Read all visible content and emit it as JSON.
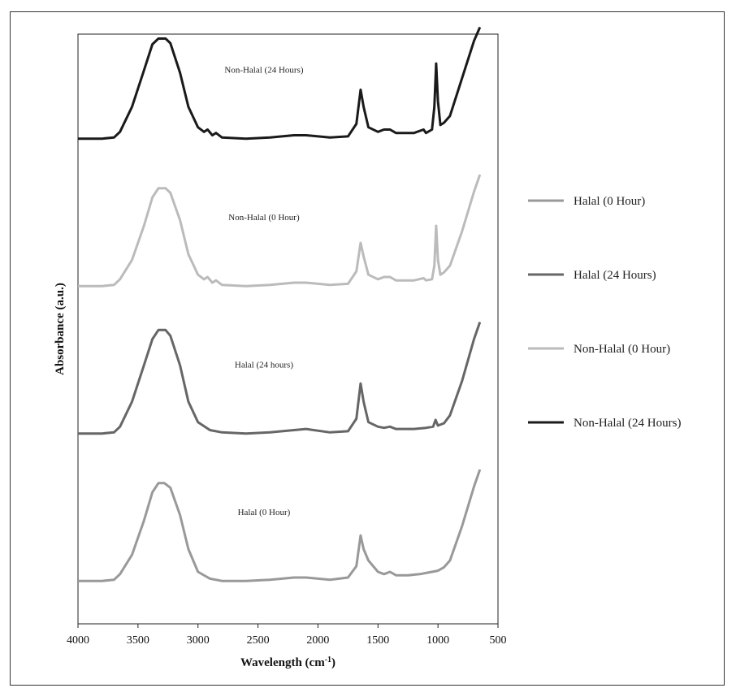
{
  "chart_data": {
    "type": "line",
    "xlabel": "Wavelength (cm",
    "xlabel_sup": "-1",
    "xlabel_close": ")",
    "ylabel": "Absorbance (a.u.)",
    "xlim": [
      4000,
      500
    ],
    "x_reversed": true,
    "x_ticks": [
      4000,
      3500,
      3000,
      2500,
      2000,
      1500,
      1000,
      500
    ],
    "y_tick_labels": false,
    "grid": false,
    "legend_position": "right",
    "series": [
      {
        "name": "Halal (0 Hour)",
        "annotation": "Halal (0 Hour)",
        "color": "#999999",
        "offset": 0,
        "points": [
          [
            4000,
            0.02
          ],
          [
            3800,
            0.02
          ],
          [
            3700,
            0.03
          ],
          [
            3650,
            0.08
          ],
          [
            3550,
            0.25
          ],
          [
            3450,
            0.55
          ],
          [
            3380,
            0.8
          ],
          [
            3330,
            0.88
          ],
          [
            3280,
            0.88
          ],
          [
            3230,
            0.84
          ],
          [
            3150,
            0.6
          ],
          [
            3080,
            0.3
          ],
          [
            3000,
            0.1
          ],
          [
            2900,
            0.04
          ],
          [
            2800,
            0.02
          ],
          [
            2600,
            0.02
          ],
          [
            2400,
            0.03
          ],
          [
            2200,
            0.05
          ],
          [
            2100,
            0.05
          ],
          [
            1900,
            0.03
          ],
          [
            1750,
            0.05
          ],
          [
            1680,
            0.15
          ],
          [
            1645,
            0.42
          ],
          [
            1620,
            0.3
          ],
          [
            1580,
            0.2
          ],
          [
            1500,
            0.1
          ],
          [
            1450,
            0.08
          ],
          [
            1400,
            0.1
          ],
          [
            1350,
            0.07
          ],
          [
            1300,
            0.07
          ],
          [
            1250,
            0.07
          ],
          [
            1150,
            0.08
          ],
          [
            1100,
            0.09
          ],
          [
            1050,
            0.1
          ],
          [
            1000,
            0.11
          ],
          [
            950,
            0.14
          ],
          [
            900,
            0.2
          ],
          [
            800,
            0.5
          ],
          [
            700,
            0.85
          ],
          [
            650,
            1.0
          ]
        ]
      },
      {
        "name": "Halal (24 Hours)",
        "annotation": "Halal (24 hours)",
        "color": "#666666",
        "offset": 1,
        "points": [
          [
            4000,
            0.02
          ],
          [
            3800,
            0.02
          ],
          [
            3700,
            0.03
          ],
          [
            3650,
            0.08
          ],
          [
            3550,
            0.3
          ],
          [
            3450,
            0.62
          ],
          [
            3380,
            0.85
          ],
          [
            3330,
            0.93
          ],
          [
            3270,
            0.93
          ],
          [
            3230,
            0.88
          ],
          [
            3150,
            0.62
          ],
          [
            3080,
            0.3
          ],
          [
            3000,
            0.12
          ],
          [
            2900,
            0.05
          ],
          [
            2800,
            0.03
          ],
          [
            2600,
            0.02
          ],
          [
            2400,
            0.03
          ],
          [
            2200,
            0.05
          ],
          [
            2100,
            0.06
          ],
          [
            1900,
            0.03
          ],
          [
            1750,
            0.04
          ],
          [
            1680,
            0.15
          ],
          [
            1645,
            0.46
          ],
          [
            1620,
            0.3
          ],
          [
            1580,
            0.12
          ],
          [
            1500,
            0.08
          ],
          [
            1450,
            0.07
          ],
          [
            1400,
            0.08
          ],
          [
            1350,
            0.06
          ],
          [
            1200,
            0.06
          ],
          [
            1100,
            0.07
          ],
          [
            1040,
            0.08
          ],
          [
            1020,
            0.14
          ],
          [
            1000,
            0.09
          ],
          [
            950,
            0.11
          ],
          [
            900,
            0.18
          ],
          [
            800,
            0.48
          ],
          [
            700,
            0.85
          ],
          [
            650,
            1.0
          ]
        ]
      },
      {
        "name": "Non-Halal (0 Hour)",
        "annotation": "Non-Halal (0 Hour)",
        "color": "#bbbbbb",
        "offset": 2,
        "points": [
          [
            4000,
            0.02
          ],
          [
            3800,
            0.02
          ],
          [
            3700,
            0.03
          ],
          [
            3650,
            0.08
          ],
          [
            3550,
            0.25
          ],
          [
            3450,
            0.55
          ],
          [
            3380,
            0.8
          ],
          [
            3330,
            0.88
          ],
          [
            3270,
            0.88
          ],
          [
            3230,
            0.84
          ],
          [
            3150,
            0.6
          ],
          [
            3080,
            0.3
          ],
          [
            3000,
            0.12
          ],
          [
            2950,
            0.08
          ],
          [
            2920,
            0.1
          ],
          [
            2880,
            0.05
          ],
          [
            2850,
            0.07
          ],
          [
            2800,
            0.03
          ],
          [
            2600,
            0.02
          ],
          [
            2400,
            0.03
          ],
          [
            2200,
            0.05
          ],
          [
            2100,
            0.05
          ],
          [
            1900,
            0.03
          ],
          [
            1750,
            0.04
          ],
          [
            1680,
            0.15
          ],
          [
            1645,
            0.4
          ],
          [
            1620,
            0.28
          ],
          [
            1580,
            0.12
          ],
          [
            1500,
            0.08
          ],
          [
            1450,
            0.1
          ],
          [
            1400,
            0.1
          ],
          [
            1350,
            0.07
          ],
          [
            1200,
            0.07
          ],
          [
            1120,
            0.09
          ],
          [
            1100,
            0.07
          ],
          [
            1050,
            0.08
          ],
          [
            1030,
            0.2
          ],
          [
            1015,
            0.55
          ],
          [
            1000,
            0.25
          ],
          [
            980,
            0.12
          ],
          [
            950,
            0.14
          ],
          [
            900,
            0.2
          ],
          [
            800,
            0.5
          ],
          [
            700,
            0.85
          ],
          [
            650,
            1.0
          ]
        ]
      },
      {
        "name": "Non-Halal (24 Hours)",
        "annotation": "Non-Halal (24 Hours)",
        "color": "#1a1a1a",
        "offset": 3,
        "points": [
          [
            4000,
            0.02
          ],
          [
            3800,
            0.02
          ],
          [
            3700,
            0.03
          ],
          [
            3650,
            0.08
          ],
          [
            3550,
            0.3
          ],
          [
            3450,
            0.62
          ],
          [
            3380,
            0.85
          ],
          [
            3330,
            0.9
          ],
          [
            3270,
            0.9
          ],
          [
            3230,
            0.86
          ],
          [
            3150,
            0.6
          ],
          [
            3080,
            0.3
          ],
          [
            3000,
            0.12
          ],
          [
            2950,
            0.08
          ],
          [
            2920,
            0.1
          ],
          [
            2880,
            0.05
          ],
          [
            2850,
            0.07
          ],
          [
            2800,
            0.03
          ],
          [
            2600,
            0.02
          ],
          [
            2400,
            0.03
          ],
          [
            2200,
            0.05
          ],
          [
            2100,
            0.05
          ],
          [
            1900,
            0.03
          ],
          [
            1750,
            0.04
          ],
          [
            1680,
            0.15
          ],
          [
            1645,
            0.45
          ],
          [
            1620,
            0.3
          ],
          [
            1580,
            0.12
          ],
          [
            1500,
            0.08
          ],
          [
            1450,
            0.1
          ],
          [
            1400,
            0.1
          ],
          [
            1350,
            0.07
          ],
          [
            1200,
            0.07
          ],
          [
            1120,
            0.1
          ],
          [
            1100,
            0.07
          ],
          [
            1050,
            0.1
          ],
          [
            1030,
            0.3
          ],
          [
            1015,
            0.68
          ],
          [
            1000,
            0.35
          ],
          [
            980,
            0.14
          ],
          [
            950,
            0.16
          ],
          [
            900,
            0.22
          ],
          [
            800,
            0.55
          ],
          [
            700,
            0.88
          ],
          [
            650,
            1.0
          ]
        ]
      }
    ]
  }
}
